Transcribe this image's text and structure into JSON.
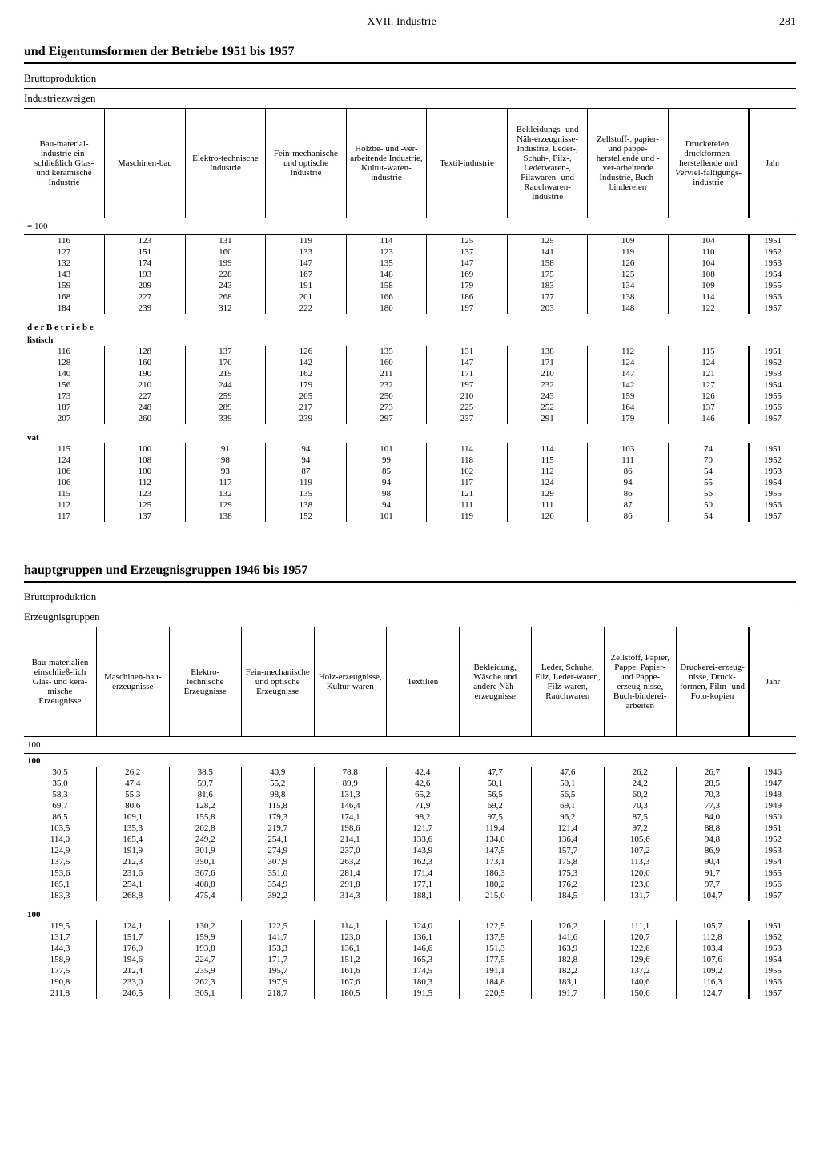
{
  "page": {
    "chapter": "XVII. Industrie",
    "pageNumber": "281"
  },
  "table1": {
    "title": "und Eigentumsformen der Betriebe 1951 bis 1957",
    "sub1": "Bruttoproduktion",
    "sub2": "Industriezweigen",
    "base": "= 100",
    "columns": [
      "Bau-material-industrie ein-schließlich Glas- und keramische Industrie",
      "Maschinen-bau",
      "Elektro-technische Industrie",
      "Fein-mechanische und optische Industrie",
      "Holzbe- und -ver-arbeitende Industrie, Kultur-waren-industrie",
      "Textil-industrie",
      "Bekleidungs- und Näh-erzeugnisse-Industrie, Leder-, Schuh-, Filz-, Lederwaren-, Filzwaren- und Rauchwaren-Industrie",
      "Zellstoff-, papier- und pappe-herstellende und -ver-arbeitende Industrie, Buch-bindereien",
      "Druckereien, druckformen-herstellende und Verviel-fältigungs-industrie",
      "Jahr"
    ],
    "groups": [
      {
        "label": "",
        "rows": [
          [
            "116",
            "123",
            "131",
            "119",
            "114",
            "125",
            "125",
            "109",
            "104",
            "1951"
          ],
          [
            "127",
            "151",
            "160",
            "133",
            "123",
            "137",
            "141",
            "119",
            "110",
            "1952"
          ],
          [
            "132",
            "174",
            "199",
            "147",
            "135",
            "147",
            "158",
            "126",
            "104",
            "1953"
          ],
          [
            "143",
            "193",
            "228",
            "167",
            "148",
            "169",
            "175",
            "125",
            "108",
            "1954"
          ],
          [
            "159",
            "209",
            "243",
            "191",
            "158",
            "179",
            "183",
            "134",
            "109",
            "1955"
          ],
          [
            "168",
            "227",
            "268",
            "201",
            "166",
            "186",
            "177",
            "138",
            "114",
            "1956"
          ],
          [
            "184",
            "239",
            "312",
            "222",
            "180",
            "197",
            "203",
            "148",
            "122",
            "1957"
          ]
        ]
      },
      {
        "label": "d e r  B e t r i e b e",
        "label2": "listisch",
        "rows": [
          [
            "116",
            "128",
            "137",
            "126",
            "135",
            "131",
            "138",
            "112",
            "115",
            "1951"
          ],
          [
            "128",
            "160",
            "170",
            "142",
            "160",
            "147",
            "171",
            "124",
            "124",
            "1952"
          ],
          [
            "140",
            "190",
            "215",
            "162",
            "211",
            "171",
            "210",
            "147",
            "121",
            "1953"
          ],
          [
            "156",
            "210",
            "244",
            "179",
            "232",
            "197",
            "232",
            "142",
            "127",
            "1954"
          ],
          [
            "173",
            "227",
            "259",
            "205",
            "250",
            "210",
            "243",
            "159",
            "126",
            "1955"
          ],
          [
            "187",
            "248",
            "289",
            "217",
            "273",
            "225",
            "252",
            "164",
            "137",
            "1956"
          ],
          [
            "207",
            "260",
            "339",
            "239",
            "297",
            "237",
            "291",
            "179",
            "146",
            "1957"
          ]
        ]
      },
      {
        "label": "vat",
        "rows": [
          [
            "115",
            "100",
            "91",
            "94",
            "101",
            "114",
            "114",
            "103",
            "74",
            "1951"
          ],
          [
            "124",
            "108",
            "98",
            "94",
            "99",
            "118",
            "115",
            "111",
            "70",
            "1952"
          ],
          [
            "106",
            "100",
            "93",
            "87",
            "85",
            "102",
            "112",
            "86",
            "54",
            "1953"
          ],
          [
            "106",
            "112",
            "117",
            "119",
            "94",
            "117",
            "124",
            "94",
            "55",
            "1954"
          ],
          [
            "115",
            "123",
            "132",
            "135",
            "98",
            "121",
            "129",
            "86",
            "56",
            "1955"
          ],
          [
            "112",
            "125",
            "129",
            "138",
            "94",
            "111",
            "111",
            "87",
            "50",
            "1956"
          ],
          [
            "117",
            "137",
            "138",
            "152",
            "101",
            "119",
            "126",
            "86",
            "54",
            "1957"
          ]
        ]
      }
    ]
  },
  "table2": {
    "title": "hauptgruppen und Erzeugnisgruppen 1946 bis 1957",
    "sub1": "Bruttoproduktion",
    "sub2": "Erzeugnisgruppen",
    "base": "100",
    "columns": [
      "Bau-materialien einschließ-lich Glas- und kera-mische Erzeugnisse",
      "Maschinen-bau-erzeugnisse",
      "Elektro-technische Erzeugnisse",
      "Fein-mechanische und optische Erzeugnisse",
      "Holz-erzeugnisse, Kultur-waren",
      "Textilien",
      "Bekleidung, Wäsche und andere Näh-erzeugnisse",
      "Leder, Schuhe, Filz, Leder-waren, Filz-waren, Rauchwaren",
      "Zellstoff, Papier, Pappe, Papier- und Pappe-erzeug-nisse, Buch-binderei-arbeiten",
      "Druckerei-erzeug-nisse, Druck-formen, Film- und Foto-kopien",
      "Jahr"
    ],
    "groups": [
      {
        "label": "100",
        "rows": [
          [
            "30,5",
            "26,2",
            "38,5",
            "40,9",
            "78,8",
            "42,4",
            "47,7",
            "47,6",
            "26,2",
            "26,7",
            "1946"
          ],
          [
            "35,0",
            "47,4",
            "59,7",
            "55,2",
            "89,9",
            "42,6",
            "50,1",
            "50,1",
            "24,2",
            "28,5",
            "1947"
          ],
          [
            "58,3",
            "55,3",
            "81,6",
            "98,8",
            "131,3",
            "65,2",
            "56,5",
            "56,5",
            "60,2",
            "70,3",
            "1948"
          ],
          [
            "69,7",
            "80,6",
            "128,2",
            "115,8",
            "146,4",
            "71,9",
            "69,2",
            "69,1",
            "70,3",
            "77,3",
            "1949"
          ],
          [
            "86,5",
            "109,1",
            "155,8",
            "179,3",
            "174,1",
            "98,2",
            "97,5",
            "96,2",
            "87,5",
            "84,0",
            "1950"
          ],
          [
            "103,5",
            "135,3",
            "202,8",
            "219,7",
            "198,6",
            "121,7",
            "119,4",
            "121,4",
            "97,2",
            "88,8",
            "1951"
          ],
          [
            "114,0",
            "165,4",
            "249,2",
            "254,1",
            "214,1",
            "133,6",
            "134,0",
            "136,4",
            "105,6",
            "94,8",
            "1952"
          ],
          [
            "124,9",
            "191,9",
            "301,9",
            "274,9",
            "237,0",
            "143,9",
            "147,5",
            "157,7",
            "107,2",
            "86,9",
            "1953"
          ],
          [
            "137,5",
            "212,3",
            "350,1",
            "307,9",
            "263,2",
            "162,3",
            "173,1",
            "175,8",
            "113,3",
            "90,4",
            "1954"
          ],
          [
            "153,6",
            "231,6",
            "367,6",
            "351,0",
            "281,4",
            "171,4",
            "186,3",
            "175,3",
            "120,0",
            "91,7",
            "1955"
          ],
          [
            "165,1",
            "254,1",
            "408,8",
            "354,9",
            "291,8",
            "177,1",
            "180,2",
            "176,2",
            "123,0",
            "97,7",
            "1956"
          ],
          [
            "183,3",
            "268,8",
            "475,4",
            "392,2",
            "314,3",
            "188,1",
            "215,0",
            "184,5",
            "131,7",
            "104,7",
            "1957"
          ]
        ]
      },
      {
        "label": "100",
        "rows": [
          [
            "119,5",
            "124,1",
            "130,2",
            "122,5",
            "114,1",
            "124,0",
            "122,5",
            "126,2",
            "111,1",
            "105,7",
            "1951"
          ],
          [
            "131,7",
            "151,7",
            "159,9",
            "141,7",
            "123,0",
            "136,1",
            "137,5",
            "141,6",
            "120,7",
            "112,8",
            "1952"
          ],
          [
            "144,3",
            "176,0",
            "193,8",
            "153,3",
            "136,1",
            "146,6",
            "151,3",
            "163,9",
            "122,6",
            "103,4",
            "1953"
          ],
          [
            "158,9",
            "194,6",
            "224,7",
            "171,7",
            "151,2",
            "165,3",
            "177,5",
            "182,8",
            "129,6",
            "107,6",
            "1954"
          ],
          [
            "177,5",
            "212,4",
            "235,9",
            "195,7",
            "161,6",
            "174,5",
            "191,1",
            "182,2",
            "137,2",
            "109,2",
            "1955"
          ],
          [
            "190,8",
            "233,0",
            "262,3",
            "197,9",
            "167,6",
            "180,3",
            "184,8",
            "183,1",
            "140,6",
            "116,3",
            "1956"
          ],
          [
            "211,8",
            "246,5",
            "305,1",
            "218,7",
            "180,5",
            "191,5",
            "220,5",
            "191,7",
            "150,6",
            "124,7",
            "1957"
          ]
        ]
      }
    ]
  }
}
